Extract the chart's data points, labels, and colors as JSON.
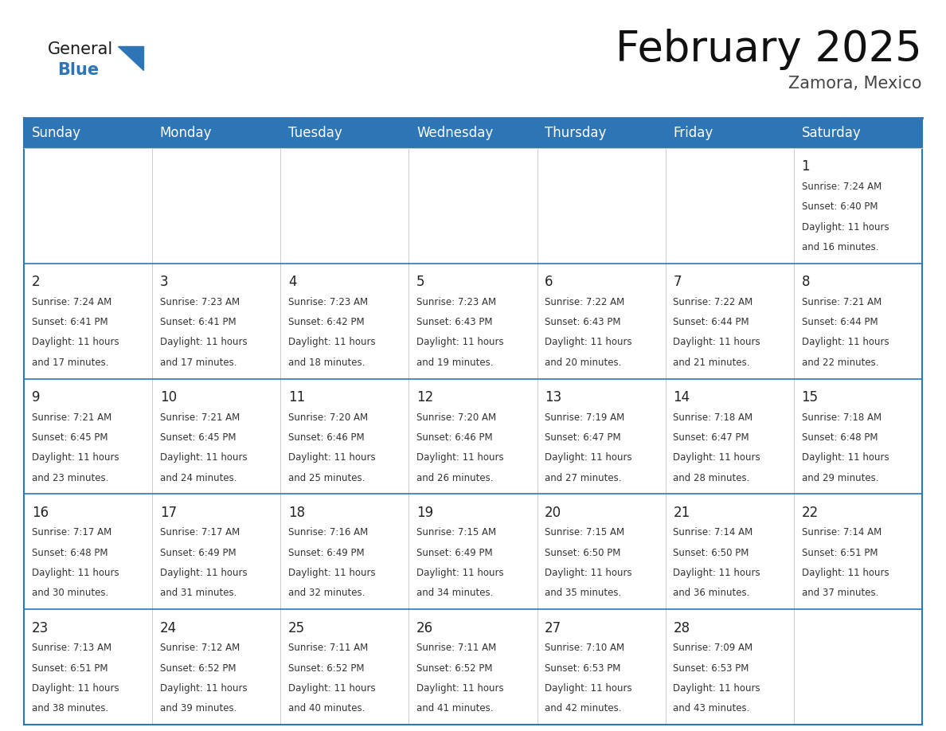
{
  "title": "February 2025",
  "subtitle": "Zamora, Mexico",
  "header_color": "#2E75B6",
  "header_text_color": "#FFFFFF",
  "day_names": [
    "Sunday",
    "Monday",
    "Tuesday",
    "Wednesday",
    "Thursday",
    "Friday",
    "Saturday"
  ],
  "title_fontsize": 38,
  "subtitle_fontsize": 15,
  "header_fontsize": 12,
  "cell_day_fontsize": 12,
  "cell_info_fontsize": 8.5,
  "grid_color": "#2E75B6",
  "cell_bg_color": "#FFFFFF",
  "row_separator_color": "#2E75B6",
  "logo_general_color": "#1a1a1a",
  "logo_blue_color": "#2E75B6",
  "calendar": [
    [
      null,
      null,
      null,
      null,
      null,
      null,
      {
        "day": 1,
        "sunrise": "7:24 AM",
        "sunset": "6:40 PM",
        "daylight": "11 hours and 16 minutes."
      }
    ],
    [
      {
        "day": 2,
        "sunrise": "7:24 AM",
        "sunset": "6:41 PM",
        "daylight": "11 hours and 17 minutes."
      },
      {
        "day": 3,
        "sunrise": "7:23 AM",
        "sunset": "6:41 PM",
        "daylight": "11 hours and 17 minutes."
      },
      {
        "day": 4,
        "sunrise": "7:23 AM",
        "sunset": "6:42 PM",
        "daylight": "11 hours and 18 minutes."
      },
      {
        "day": 5,
        "sunrise": "7:23 AM",
        "sunset": "6:43 PM",
        "daylight": "11 hours and 19 minutes."
      },
      {
        "day": 6,
        "sunrise": "7:22 AM",
        "sunset": "6:43 PM",
        "daylight": "11 hours and 20 minutes."
      },
      {
        "day": 7,
        "sunrise": "7:22 AM",
        "sunset": "6:44 PM",
        "daylight": "11 hours and 21 minutes."
      },
      {
        "day": 8,
        "sunrise": "7:21 AM",
        "sunset": "6:44 PM",
        "daylight": "11 hours and 22 minutes."
      }
    ],
    [
      {
        "day": 9,
        "sunrise": "7:21 AM",
        "sunset": "6:45 PM",
        "daylight": "11 hours and 23 minutes."
      },
      {
        "day": 10,
        "sunrise": "7:21 AM",
        "sunset": "6:45 PM",
        "daylight": "11 hours and 24 minutes."
      },
      {
        "day": 11,
        "sunrise": "7:20 AM",
        "sunset": "6:46 PM",
        "daylight": "11 hours and 25 minutes."
      },
      {
        "day": 12,
        "sunrise": "7:20 AM",
        "sunset": "6:46 PM",
        "daylight": "11 hours and 26 minutes."
      },
      {
        "day": 13,
        "sunrise": "7:19 AM",
        "sunset": "6:47 PM",
        "daylight": "11 hours and 27 minutes."
      },
      {
        "day": 14,
        "sunrise": "7:18 AM",
        "sunset": "6:47 PM",
        "daylight": "11 hours and 28 minutes."
      },
      {
        "day": 15,
        "sunrise": "7:18 AM",
        "sunset": "6:48 PM",
        "daylight": "11 hours and 29 minutes."
      }
    ],
    [
      {
        "day": 16,
        "sunrise": "7:17 AM",
        "sunset": "6:48 PM",
        "daylight": "11 hours and 30 minutes."
      },
      {
        "day": 17,
        "sunrise": "7:17 AM",
        "sunset": "6:49 PM",
        "daylight": "11 hours and 31 minutes."
      },
      {
        "day": 18,
        "sunrise": "7:16 AM",
        "sunset": "6:49 PM",
        "daylight": "11 hours and 32 minutes."
      },
      {
        "day": 19,
        "sunrise": "7:15 AM",
        "sunset": "6:49 PM",
        "daylight": "11 hours and 34 minutes."
      },
      {
        "day": 20,
        "sunrise": "7:15 AM",
        "sunset": "6:50 PM",
        "daylight": "11 hours and 35 minutes."
      },
      {
        "day": 21,
        "sunrise": "7:14 AM",
        "sunset": "6:50 PM",
        "daylight": "11 hours and 36 minutes."
      },
      {
        "day": 22,
        "sunrise": "7:14 AM",
        "sunset": "6:51 PM",
        "daylight": "11 hours and 37 minutes."
      }
    ],
    [
      {
        "day": 23,
        "sunrise": "7:13 AM",
        "sunset": "6:51 PM",
        "daylight": "11 hours and 38 minutes."
      },
      {
        "day": 24,
        "sunrise": "7:12 AM",
        "sunset": "6:52 PM",
        "daylight": "11 hours and 39 minutes."
      },
      {
        "day": 25,
        "sunrise": "7:11 AM",
        "sunset": "6:52 PM",
        "daylight": "11 hours and 40 minutes."
      },
      {
        "day": 26,
        "sunrise": "7:11 AM",
        "sunset": "6:52 PM",
        "daylight": "11 hours and 41 minutes."
      },
      {
        "day": 27,
        "sunrise": "7:10 AM",
        "sunset": "6:53 PM",
        "daylight": "11 hours and 42 minutes."
      },
      {
        "day": 28,
        "sunrise": "7:09 AM",
        "sunset": "6:53 PM",
        "daylight": "11 hours and 43 minutes."
      },
      null
    ]
  ]
}
